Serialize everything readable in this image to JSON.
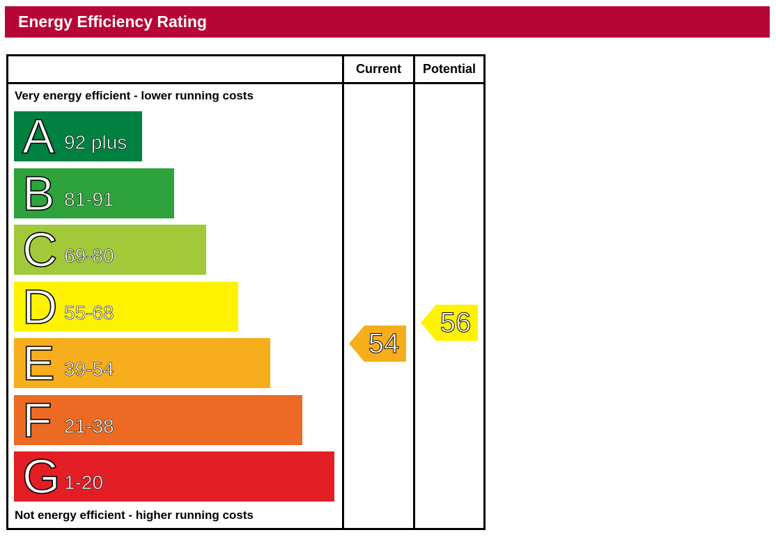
{
  "title": "Energy Efficiency Rating",
  "colors": {
    "title_bar": "#b80538"
  },
  "chart_data": {
    "type": "bar",
    "columns": [
      "Current",
      "Potential"
    ],
    "top_text": "Very energy efficient - lower running costs",
    "bottom_text": "Not energy efficient - higher running costs",
    "bands": [
      {
        "letter": "A",
        "range": "92 plus",
        "color": "#008041"
      },
      {
        "letter": "B",
        "range": "81-91",
        "color": "#2ea33b"
      },
      {
        "letter": "C",
        "range": "69-80",
        "color": "#a1c93a"
      },
      {
        "letter": "D",
        "range": "55-68",
        "color": "#fff200"
      },
      {
        "letter": "E",
        "range": "39-54",
        "color": "#f6ae1d"
      },
      {
        "letter": "F",
        "range": "21-38",
        "color": "#ec6a23"
      },
      {
        "letter": "G",
        "range": "1-20",
        "color": "#e31e25"
      }
    ],
    "ratings": [
      {
        "column": "Current",
        "value": "54",
        "band": "E",
        "color": "#f6ae1d"
      },
      {
        "column": "Potential",
        "value": "56",
        "band": "D",
        "color": "#fff200"
      }
    ],
    "scale_min": 1,
    "scale_max": 100
  }
}
